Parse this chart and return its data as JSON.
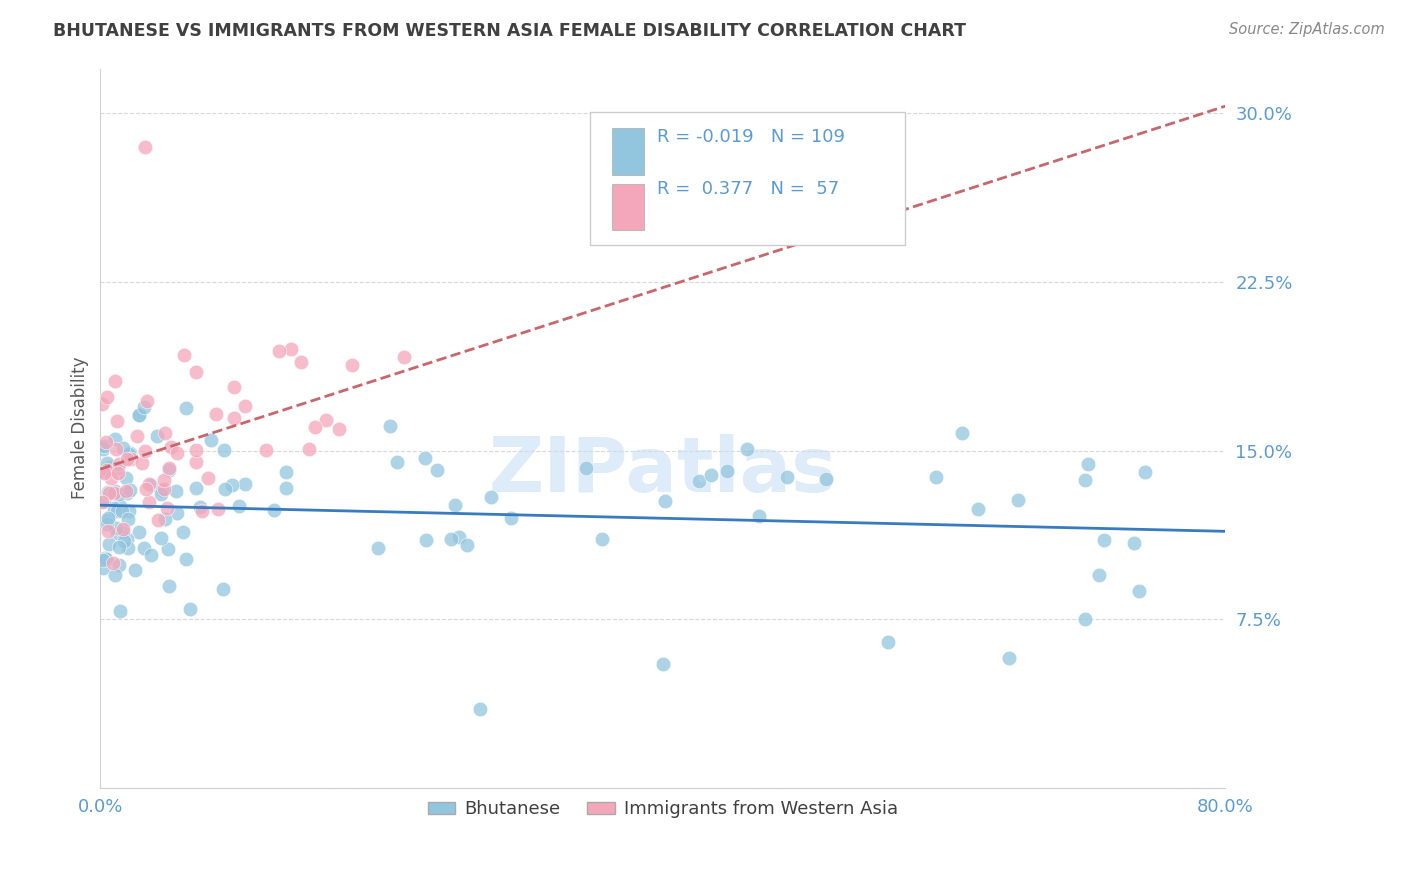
{
  "title": "BHUTANESE VS IMMIGRANTS FROM WESTERN ASIA FEMALE DISABILITY CORRELATION CHART",
  "source": "Source: ZipAtlas.com",
  "ylabel": "Female Disability",
  "xlim": [
    0.0,
    0.8
  ],
  "ylim": [
    0.0,
    0.32
  ],
  "xtick_positions": [
    0.0,
    0.1,
    0.2,
    0.3,
    0.4,
    0.5,
    0.6,
    0.7,
    0.8
  ],
  "xticklabels": [
    "0.0%",
    "",
    "",
    "",
    "",
    "",
    "",
    "",
    "80.0%"
  ],
  "ytick_positions": [
    0.0,
    0.075,
    0.15,
    0.225,
    0.3
  ],
  "yticklabels": [
    "",
    "7.5%",
    "15.0%",
    "22.5%",
    "30.0%"
  ],
  "blue_R": -0.019,
  "blue_N": 109,
  "pink_R": 0.377,
  "pink_N": 57,
  "blue_color": "#92c5de",
  "pink_color": "#f4a6ba",
  "blue_line_color": "#3a7abf",
  "pink_line_color": "#c9666b",
  "legend_blue_label": "Bhutanese",
  "legend_pink_label": "Immigrants from Western Asia",
  "background_color": "#ffffff",
  "grid_color": "#d9d9d9",
  "tick_color": "#5b9bd5",
  "title_color": "#404040",
  "label_color": "#595959",
  "legend_text_color": "#5b9bd5",
  "watermark_color": "#c8dff5"
}
